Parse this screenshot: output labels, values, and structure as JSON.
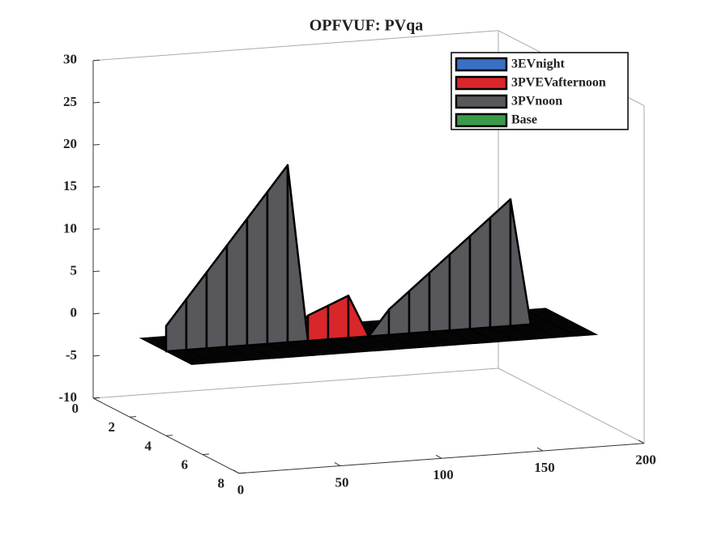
{
  "chart_data": {
    "type": "ribbon3d",
    "title": "OPFVUF: PVqa",
    "x": [
      0,
      10,
      20,
      30,
      40,
      50,
      60,
      70,
      80,
      90,
      100,
      110,
      120,
      130,
      140,
      150,
      160,
      170,
      180,
      190,
      200
    ],
    "series": [
      {
        "name": "3EVnight",
        "color": "#3a6fc4",
        "values": [
          0,
          0,
          0,
          0,
          0,
          0,
          0,
          0,
          0,
          0,
          0,
          0,
          0,
          0,
          0,
          0,
          0,
          0,
          0,
          0,
          0
        ]
      },
      {
        "name": "3PVEVafternoon",
        "color": "#d9262b",
        "values": [
          0,
          0,
          0,
          0,
          0,
          0,
          0,
          3,
          4,
          5,
          0,
          0,
          0,
          0,
          0,
          0,
          0,
          0,
          0,
          0,
          0
        ]
      },
      {
        "name": "3PVnoon",
        "color": "#58585c",
        "values": [
          3,
          6,
          9,
          12,
          15,
          18,
          21,
          0,
          0,
          0,
          0,
          3,
          5,
          7,
          9,
          11,
          13,
          15,
          0,
          0,
          0
        ]
      },
      {
        "name": "Base",
        "color": "#3a9a4a",
        "values": [
          0,
          0,
          0,
          0,
          0,
          0,
          0,
          0,
          0,
          0,
          0,
          0,
          0,
          0,
          0,
          0,
          0,
          0,
          0,
          0,
          0
        ]
      }
    ],
    "xlim": [
      0,
      200
    ],
    "xticks": [
      0,
      50,
      100,
      150,
      200
    ],
    "ylim": [
      0,
      8
    ],
    "yticks": [
      0,
      2,
      4,
      6,
      8
    ],
    "zlim": [
      -10,
      30
    ],
    "zticks": [
      -10,
      -5,
      0,
      5,
      10,
      15,
      20,
      25,
      30
    ],
    "legend": "top-right"
  }
}
